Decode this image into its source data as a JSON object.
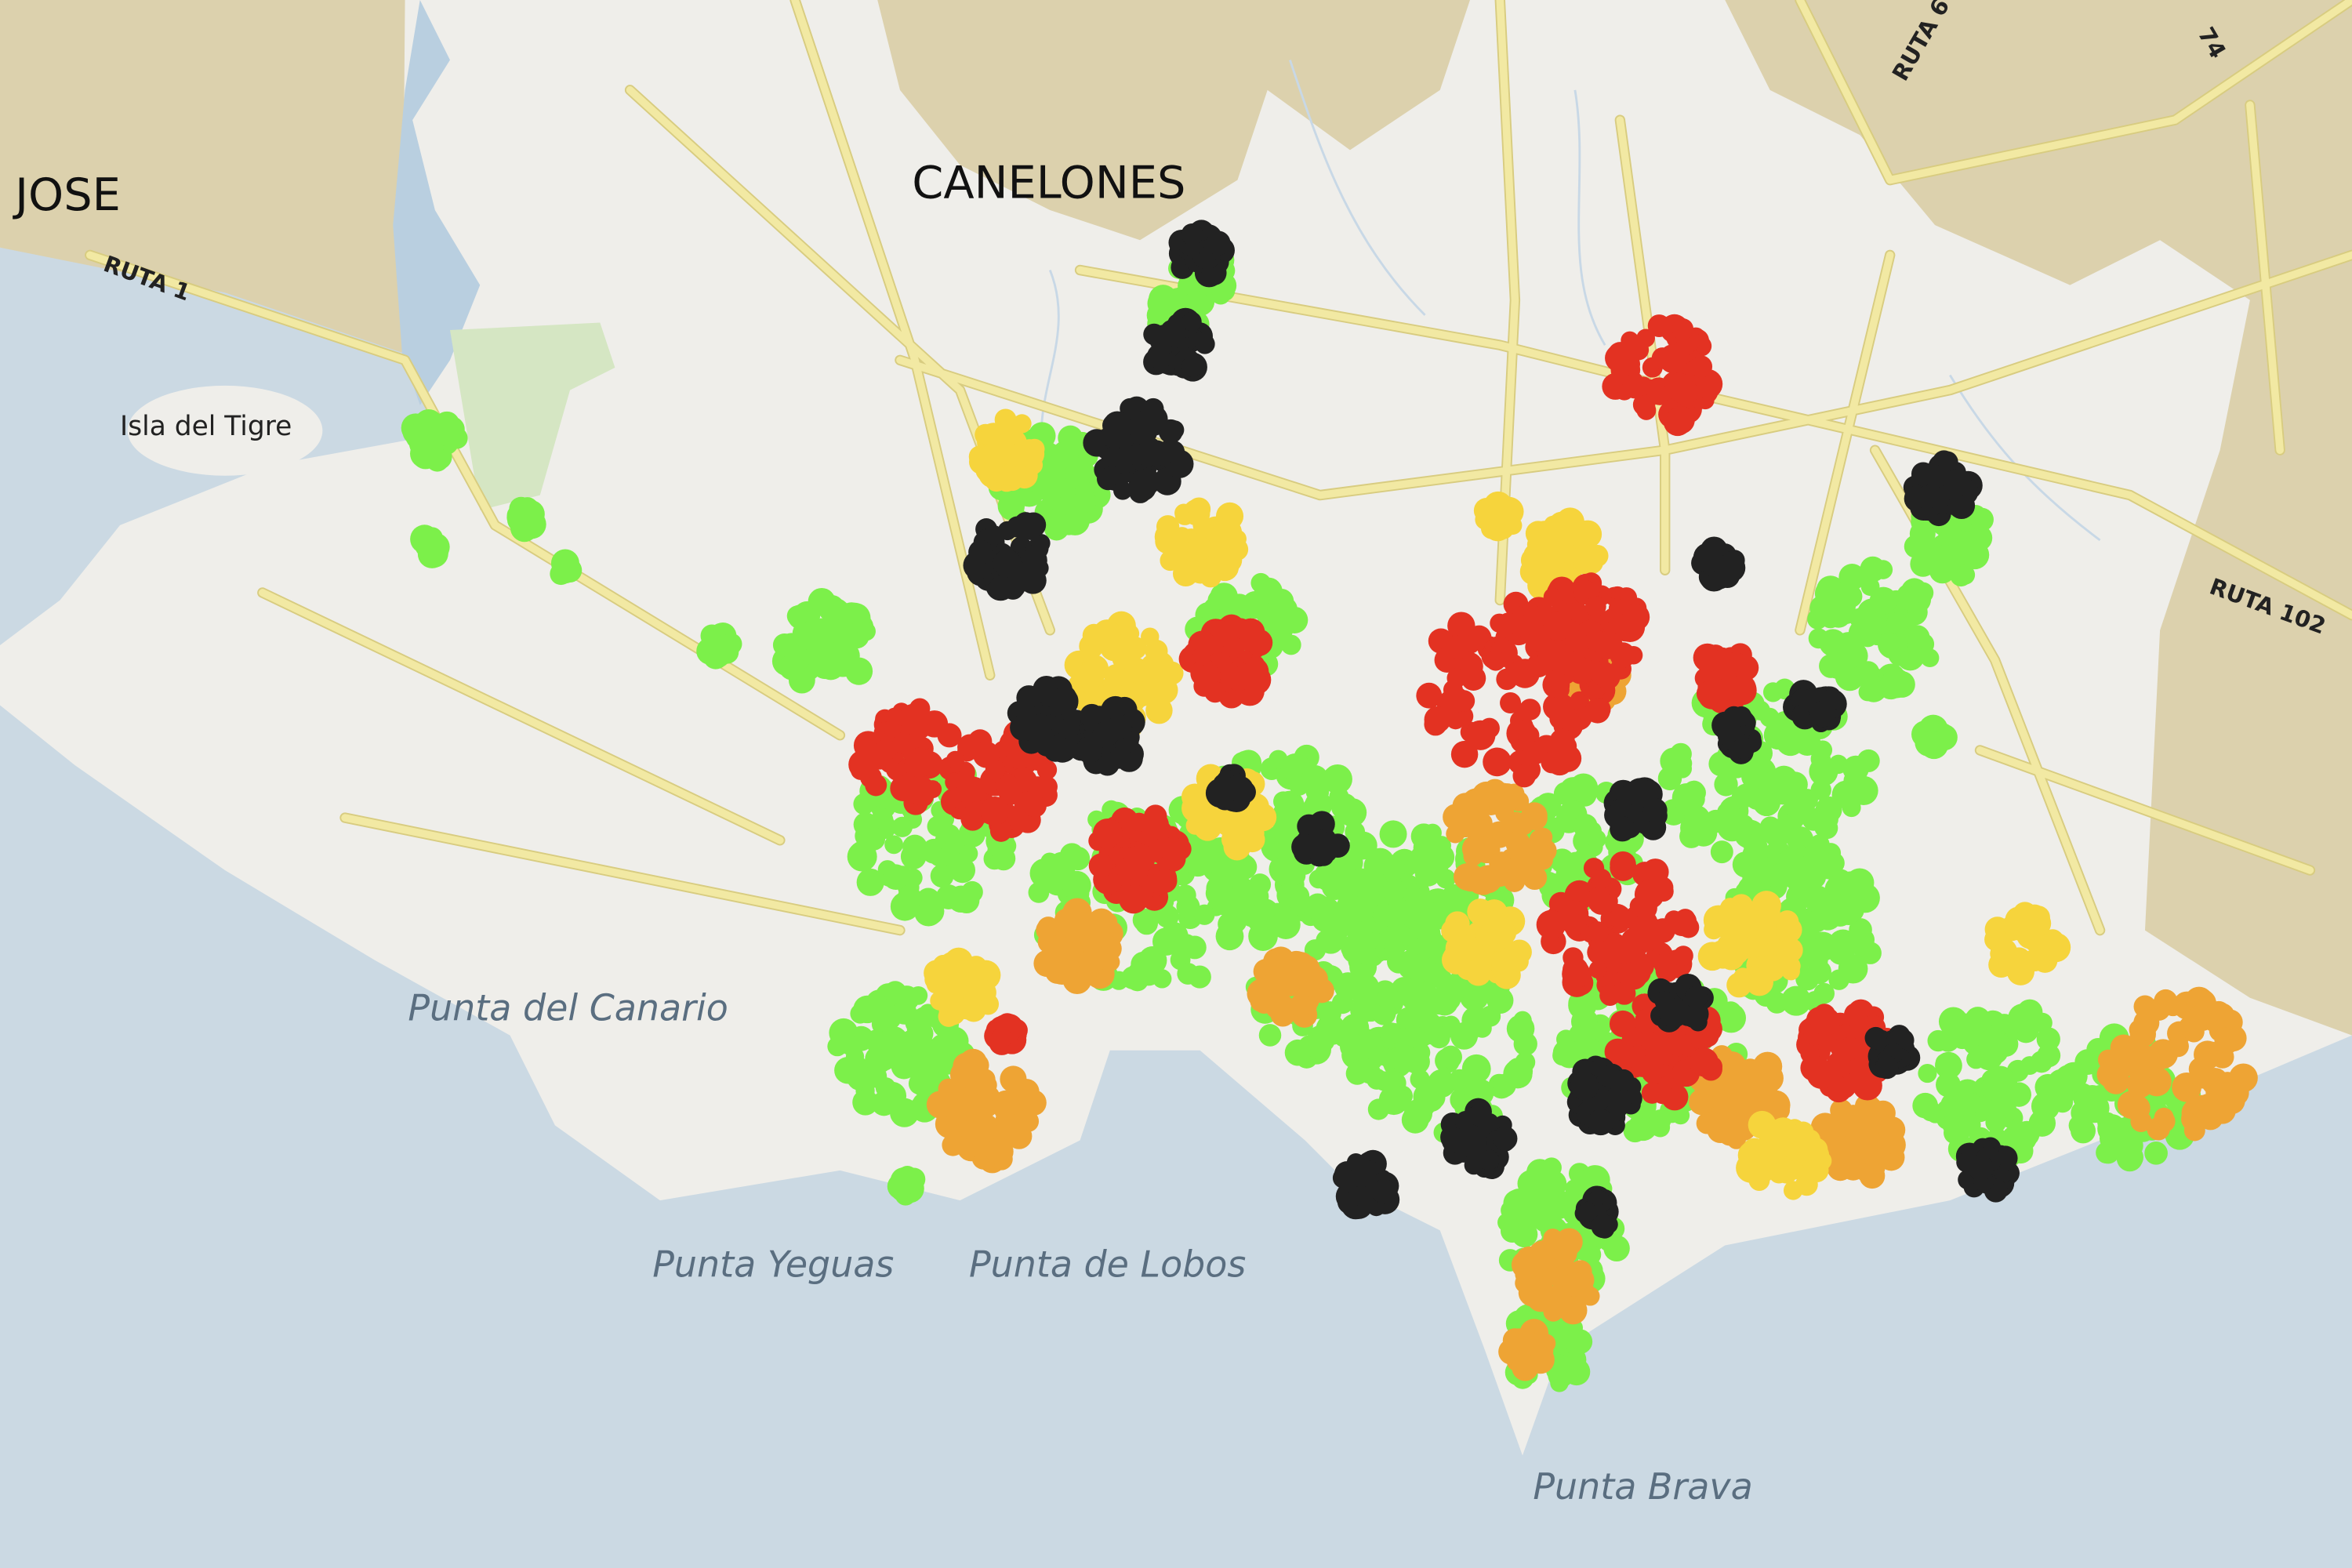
{
  "labels": {
    "department_west": "JOSE",
    "department_center": "CANELONES",
    "route_1": "RUTA 1",
    "route_6": "RUTA 6",
    "route_74": "74",
    "route_102": "RUTA 102",
    "island": "Isla del Tigre",
    "point_canario": "Punta del Canario",
    "point_yeguas": "Punta Yeguas",
    "point_lobos": "Punta de Lobos",
    "point_brava": "Punta Brava"
  }
}
